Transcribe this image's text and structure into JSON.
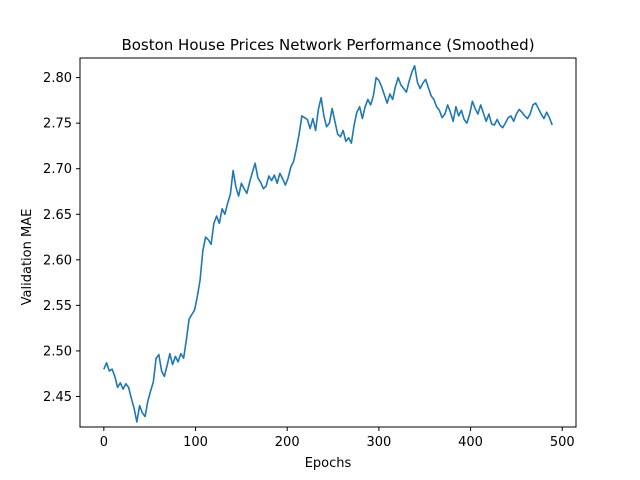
{
  "chart_data": {
    "type": "line",
    "title": "Boston House Prices Network Performance (Smoothed)",
    "xlabel": "Epochs",
    "ylabel": "Validation MAE",
    "xlim": [
      -26,
      515
    ],
    "ylim": [
      2.4165,
      2.8215
    ],
    "xticks": [
      0,
      100,
      200,
      300,
      400,
      500
    ],
    "yticks": [
      2.45,
      2.5,
      2.55,
      2.6,
      2.65,
      2.7,
      2.75,
      2.8
    ],
    "grid": false,
    "legend": "none",
    "series": [
      {
        "name": "Validation MAE (smoothed)",
        "color": "#1f77b4",
        "points": [
          [
            0,
            2.48
          ],
          [
            3,
            2.487
          ],
          [
            6,
            2.478
          ],
          [
            9,
            2.48
          ],
          [
            12,
            2.472
          ],
          [
            15,
            2.46
          ],
          [
            18,
            2.465
          ],
          [
            21,
            2.458
          ],
          [
            24,
            2.464
          ],
          [
            27,
            2.46
          ],
          [
            30,
            2.448
          ],
          [
            33,
            2.437
          ],
          [
            36,
            2.422
          ],
          [
            39,
            2.44
          ],
          [
            42,
            2.432
          ],
          [
            45,
            2.428
          ],
          [
            48,
            2.445
          ],
          [
            51,
            2.456
          ],
          [
            54,
            2.466
          ],
          [
            57,
            2.492
          ],
          [
            60,
            2.496
          ],
          [
            63,
            2.478
          ],
          [
            66,
            2.472
          ],
          [
            69,
            2.484
          ],
          [
            72,
            2.497
          ],
          [
            75,
            2.485
          ],
          [
            78,
            2.494
          ],
          [
            81,
            2.488
          ],
          [
            84,
            2.497
          ],
          [
            87,
            2.492
          ],
          [
            90,
            2.512
          ],
          [
            93,
            2.535
          ],
          [
            96,
            2.54
          ],
          [
            99,
            2.545
          ],
          [
            102,
            2.56
          ],
          [
            105,
            2.578
          ],
          [
            108,
            2.61
          ],
          [
            111,
            2.625
          ],
          [
            114,
            2.622
          ],
          [
            117,
            2.617
          ],
          [
            120,
            2.64
          ],
          [
            123,
            2.648
          ],
          [
            126,
            2.64
          ],
          [
            129,
            2.656
          ],
          [
            132,
            2.65
          ],
          [
            135,
            2.662
          ],
          [
            138,
            2.672
          ],
          [
            141,
            2.698
          ],
          [
            144,
            2.68
          ],
          [
            147,
            2.67
          ],
          [
            150,
            2.684
          ],
          [
            153,
            2.678
          ],
          [
            156,
            2.673
          ],
          [
            159,
            2.685
          ],
          [
            162,
            2.696
          ],
          [
            165,
            2.706
          ],
          [
            168,
            2.69
          ],
          [
            171,
            2.685
          ],
          [
            174,
            2.678
          ],
          [
            177,
            2.681
          ],
          [
            180,
            2.692
          ],
          [
            183,
            2.687
          ],
          [
            186,
            2.693
          ],
          [
            189,
            2.684
          ],
          [
            192,
            2.695
          ],
          [
            195,
            2.689
          ],
          [
            198,
            2.682
          ],
          [
            201,
            2.69
          ],
          [
            204,
            2.702
          ],
          [
            207,
            2.708
          ],
          [
            210,
            2.722
          ],
          [
            213,
            2.738
          ],
          [
            216,
            2.758
          ],
          [
            219,
            2.756
          ],
          [
            222,
            2.754
          ],
          [
            225,
            2.744
          ],
          [
            228,
            2.755
          ],
          [
            231,
            2.742
          ],
          [
            234,
            2.765
          ],
          [
            237,
            2.778
          ],
          [
            240,
            2.758
          ],
          [
            243,
            2.746
          ],
          [
            246,
            2.75
          ],
          [
            249,
            2.766
          ],
          [
            252,
            2.752
          ],
          [
            255,
            2.738
          ],
          [
            258,
            2.735
          ],
          [
            261,
            2.742
          ],
          [
            264,
            2.73
          ],
          [
            267,
            2.734
          ],
          [
            270,
            2.728
          ],
          [
            273,
            2.748
          ],
          [
            276,
            2.762
          ],
          [
            279,
            2.768
          ],
          [
            282,
            2.755
          ],
          [
            285,
            2.768
          ],
          [
            288,
            2.776
          ],
          [
            291,
            2.77
          ],
          [
            294,
            2.78
          ],
          [
            297,
            2.8
          ],
          [
            300,
            2.797
          ],
          [
            303,
            2.79
          ],
          [
            306,
            2.781
          ],
          [
            309,
            2.772
          ],
          [
            312,
            2.782
          ],
          [
            315,
            2.776
          ],
          [
            318,
            2.79
          ],
          [
            321,
            2.8
          ],
          [
            324,
            2.792
          ],
          [
            327,
            2.788
          ],
          [
            330,
            2.784
          ],
          [
            333,
            2.796
          ],
          [
            336,
            2.806
          ],
          [
            339,
            2.813
          ],
          [
            342,
            2.795
          ],
          [
            345,
            2.788
          ],
          [
            348,
            2.794
          ],
          [
            351,
            2.798
          ],
          [
            354,
            2.789
          ],
          [
            357,
            2.78
          ],
          [
            360,
            2.776
          ],
          [
            363,
            2.768
          ],
          [
            366,
            2.764
          ],
          [
            369,
            2.756
          ],
          [
            372,
            2.76
          ],
          [
            375,
            2.77
          ],
          [
            378,
            2.762
          ],
          [
            381,
            2.752
          ],
          [
            384,
            2.768
          ],
          [
            387,
            2.758
          ],
          [
            390,
            2.764
          ],
          [
            393,
            2.754
          ],
          [
            396,
            2.75
          ],
          [
            399,
            2.76
          ],
          [
            402,
            2.774
          ],
          [
            405,
            2.766
          ],
          [
            408,
            2.76
          ],
          [
            411,
            2.77
          ],
          [
            414,
            2.761
          ],
          [
            417,
            2.752
          ],
          [
            420,
            2.76
          ],
          [
            423,
            2.749
          ],
          [
            426,
            2.748
          ],
          [
            429,
            2.754
          ],
          [
            432,
            2.748
          ],
          [
            435,
            2.745
          ],
          [
            438,
            2.75
          ],
          [
            441,
            2.756
          ],
          [
            444,
            2.758
          ],
          [
            447,
            2.752
          ],
          [
            450,
            2.76
          ],
          [
            453,
            2.765
          ],
          [
            456,
            2.762
          ],
          [
            459,
            2.758
          ],
          [
            462,
            2.755
          ],
          [
            465,
            2.76
          ],
          [
            468,
            2.77
          ],
          [
            471,
            2.772
          ],
          [
            474,
            2.766
          ],
          [
            477,
            2.76
          ],
          [
            480,
            2.755
          ],
          [
            483,
            2.762
          ],
          [
            486,
            2.756
          ],
          [
            489,
            2.748
          ]
        ]
      }
    ]
  }
}
